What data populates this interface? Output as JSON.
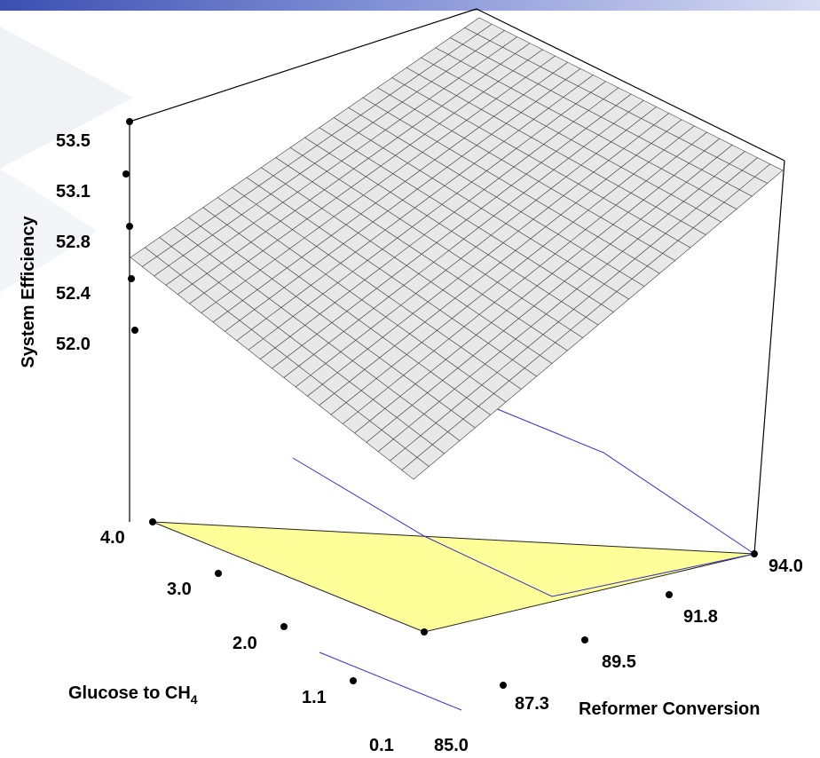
{
  "chart_data": {
    "type": "surface3d",
    "zlabel": "System Efficiency",
    "xlabel": "Reformer Conversion",
    "ylabel_main": "Glucose to CH",
    "ylabel_sub": "4",
    "x_ticks": [
      "85.0",
      "87.3",
      "89.5",
      "91.8",
      "94.0"
    ],
    "y_ticks": [
      "0.1",
      "1.1",
      "2.0",
      "3.0",
      "4.0"
    ],
    "z_ticks": [
      "53.5",
      "53.1",
      "52.8",
      "52.4",
      "52.0"
    ],
    "xlim": [
      85.0,
      94.0
    ],
    "ylim": [
      0.1,
      4.0
    ],
    "zlim": [
      51.7,
      53.5
    ],
    "surface_corners": [
      {
        "x": 85.0,
        "y": 0.1,
        "z": 51.5
      },
      {
        "x": 85.0,
        "y": 4.0,
        "z": 52.6
      },
      {
        "x": 94.0,
        "y": 0.1,
        "z": 53.2
      },
      {
        "x": 94.0,
        "y": 4.0,
        "z": 53.5
      }
    ],
    "grid": true,
    "floor_contour_color": "#ffff99",
    "surface_color": "#e8e8e8"
  }
}
